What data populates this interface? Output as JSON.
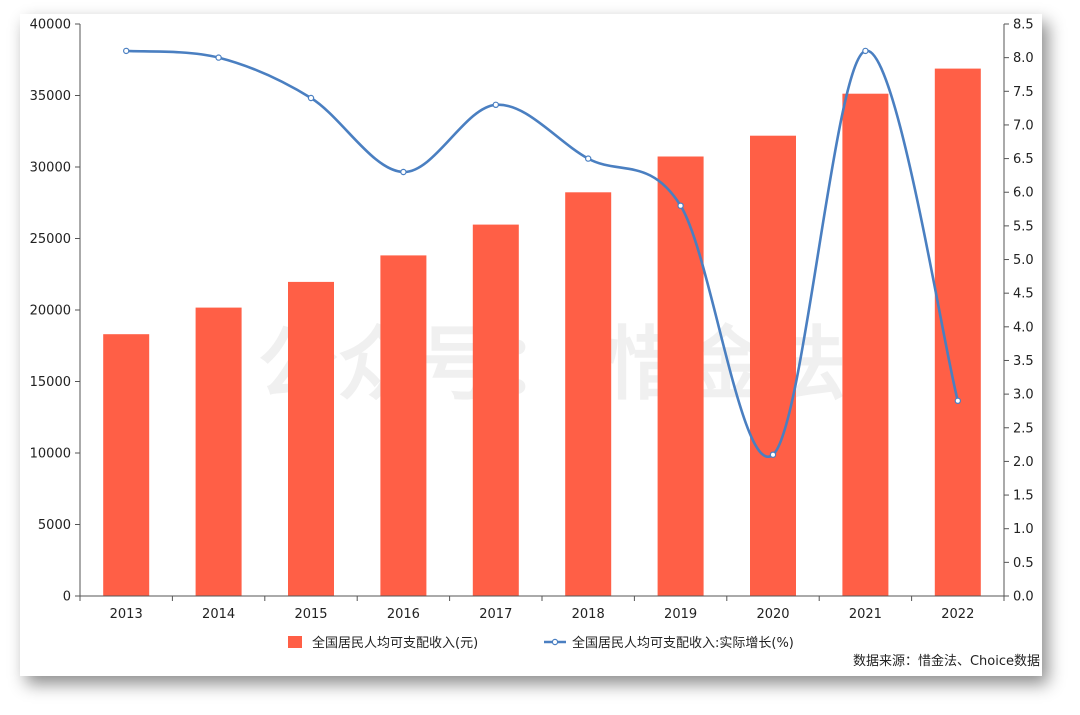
{
  "watermark": "公众号： 惜金法",
  "source": "数据来源：惜金法、Choice数据",
  "colors": {
    "bar": "#ff5f46",
    "line": "#4a7fc1",
    "axis": "#555555",
    "tick": "#222222"
  },
  "chart_data": {
    "type": "bar",
    "title": "",
    "categories": [
      "2013",
      "2014",
      "2015",
      "2016",
      "2017",
      "2018",
      "2019",
      "2020",
      "2021",
      "2022"
    ],
    "series": [
      {
        "name": "全国居民人均可支配收入(元)",
        "type": "bar",
        "axis": "left",
        "values": [
          18311,
          20167,
          21966,
          23821,
          25974,
          28228,
          30733,
          32189,
          35128,
          36883
        ]
      },
      {
        "name": "全国居民人均可支配收入:实际增长(%)",
        "type": "line",
        "axis": "right",
        "values": [
          8.1,
          8.0,
          7.4,
          6.3,
          7.3,
          6.5,
          5.8,
          2.1,
          8.1,
          2.9
        ]
      }
    ],
    "y_left": {
      "min": 0,
      "max": 40000,
      "ticks": [
        "0",
        "5000",
        "10000",
        "15000",
        "20000",
        "25000",
        "30000",
        "35000",
        "40000"
      ]
    },
    "y_right": {
      "min": 0,
      "max": 8.5,
      "ticks": [
        "0.0",
        "0.5",
        "1.0",
        "1.5",
        "2.0",
        "2.5",
        "3.0",
        "3.5",
        "4.0",
        "4.5",
        "5.0",
        "5.5",
        "6.0",
        "6.5",
        "7.0",
        "7.5",
        "8.0",
        "8.5"
      ]
    },
    "grid": false,
    "legend": "bottom-center"
  }
}
